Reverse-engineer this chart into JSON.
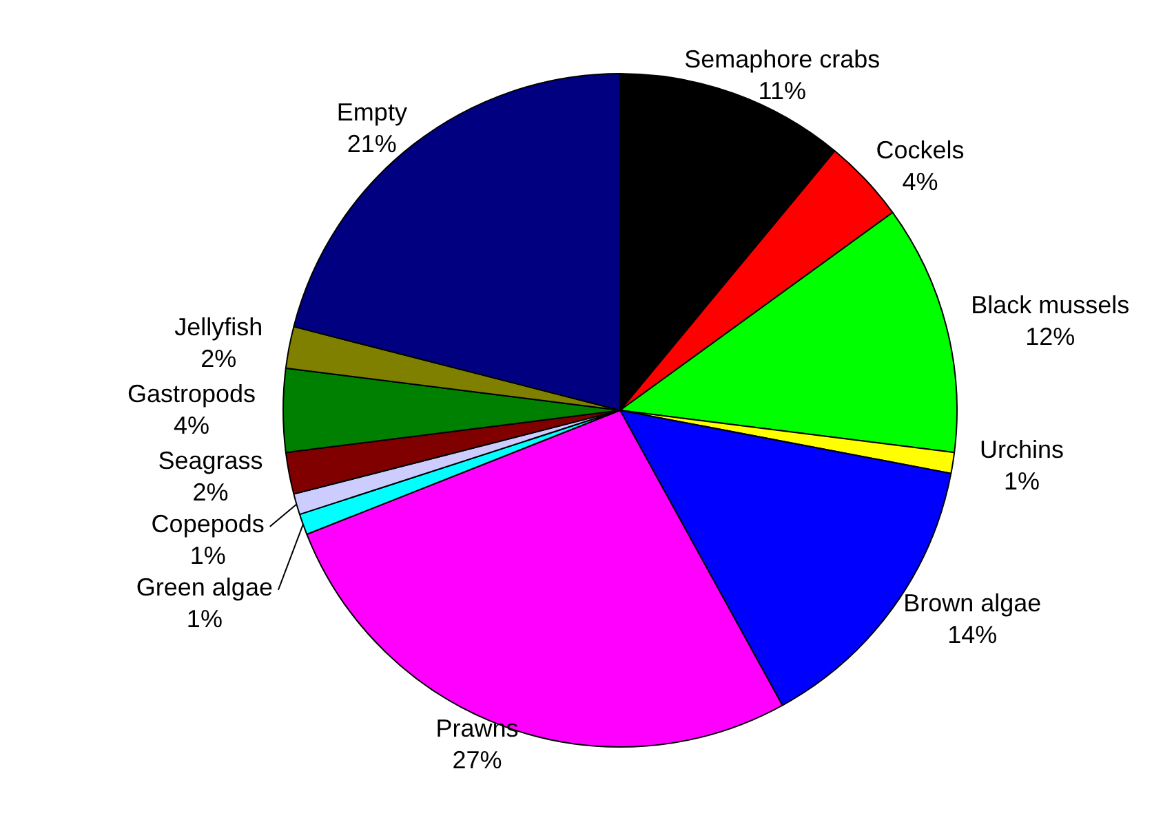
{
  "chart_data": {
    "type": "pie",
    "categories": [
      "Semaphore crabs",
      "Cockels",
      "Black mussels",
      "Urchins",
      "Brown algae",
      "Prawns",
      "Green algae",
      "Copepods",
      "Seagrass",
      "Gastropods",
      "Jellyfish",
      "Empty"
    ],
    "values": [
      11,
      4,
      12,
      1,
      14,
      27,
      1,
      1,
      2,
      4,
      2,
      21
    ],
    "value_labels": [
      "11%",
      "4%",
      "12%",
      "1%",
      "14%",
      "27%",
      "1%",
      "1%",
      "2%",
      "4%",
      "2%",
      "21%"
    ],
    "colors": [
      "#000000",
      "#ff0000",
      "#00ff00",
      "#ffff00",
      "#0000ff",
      "#ff00ff",
      "#00ffff",
      "#ccccff",
      "#800000",
      "#008000",
      "#808000",
      "#000080"
    ],
    "legend": false
  }
}
